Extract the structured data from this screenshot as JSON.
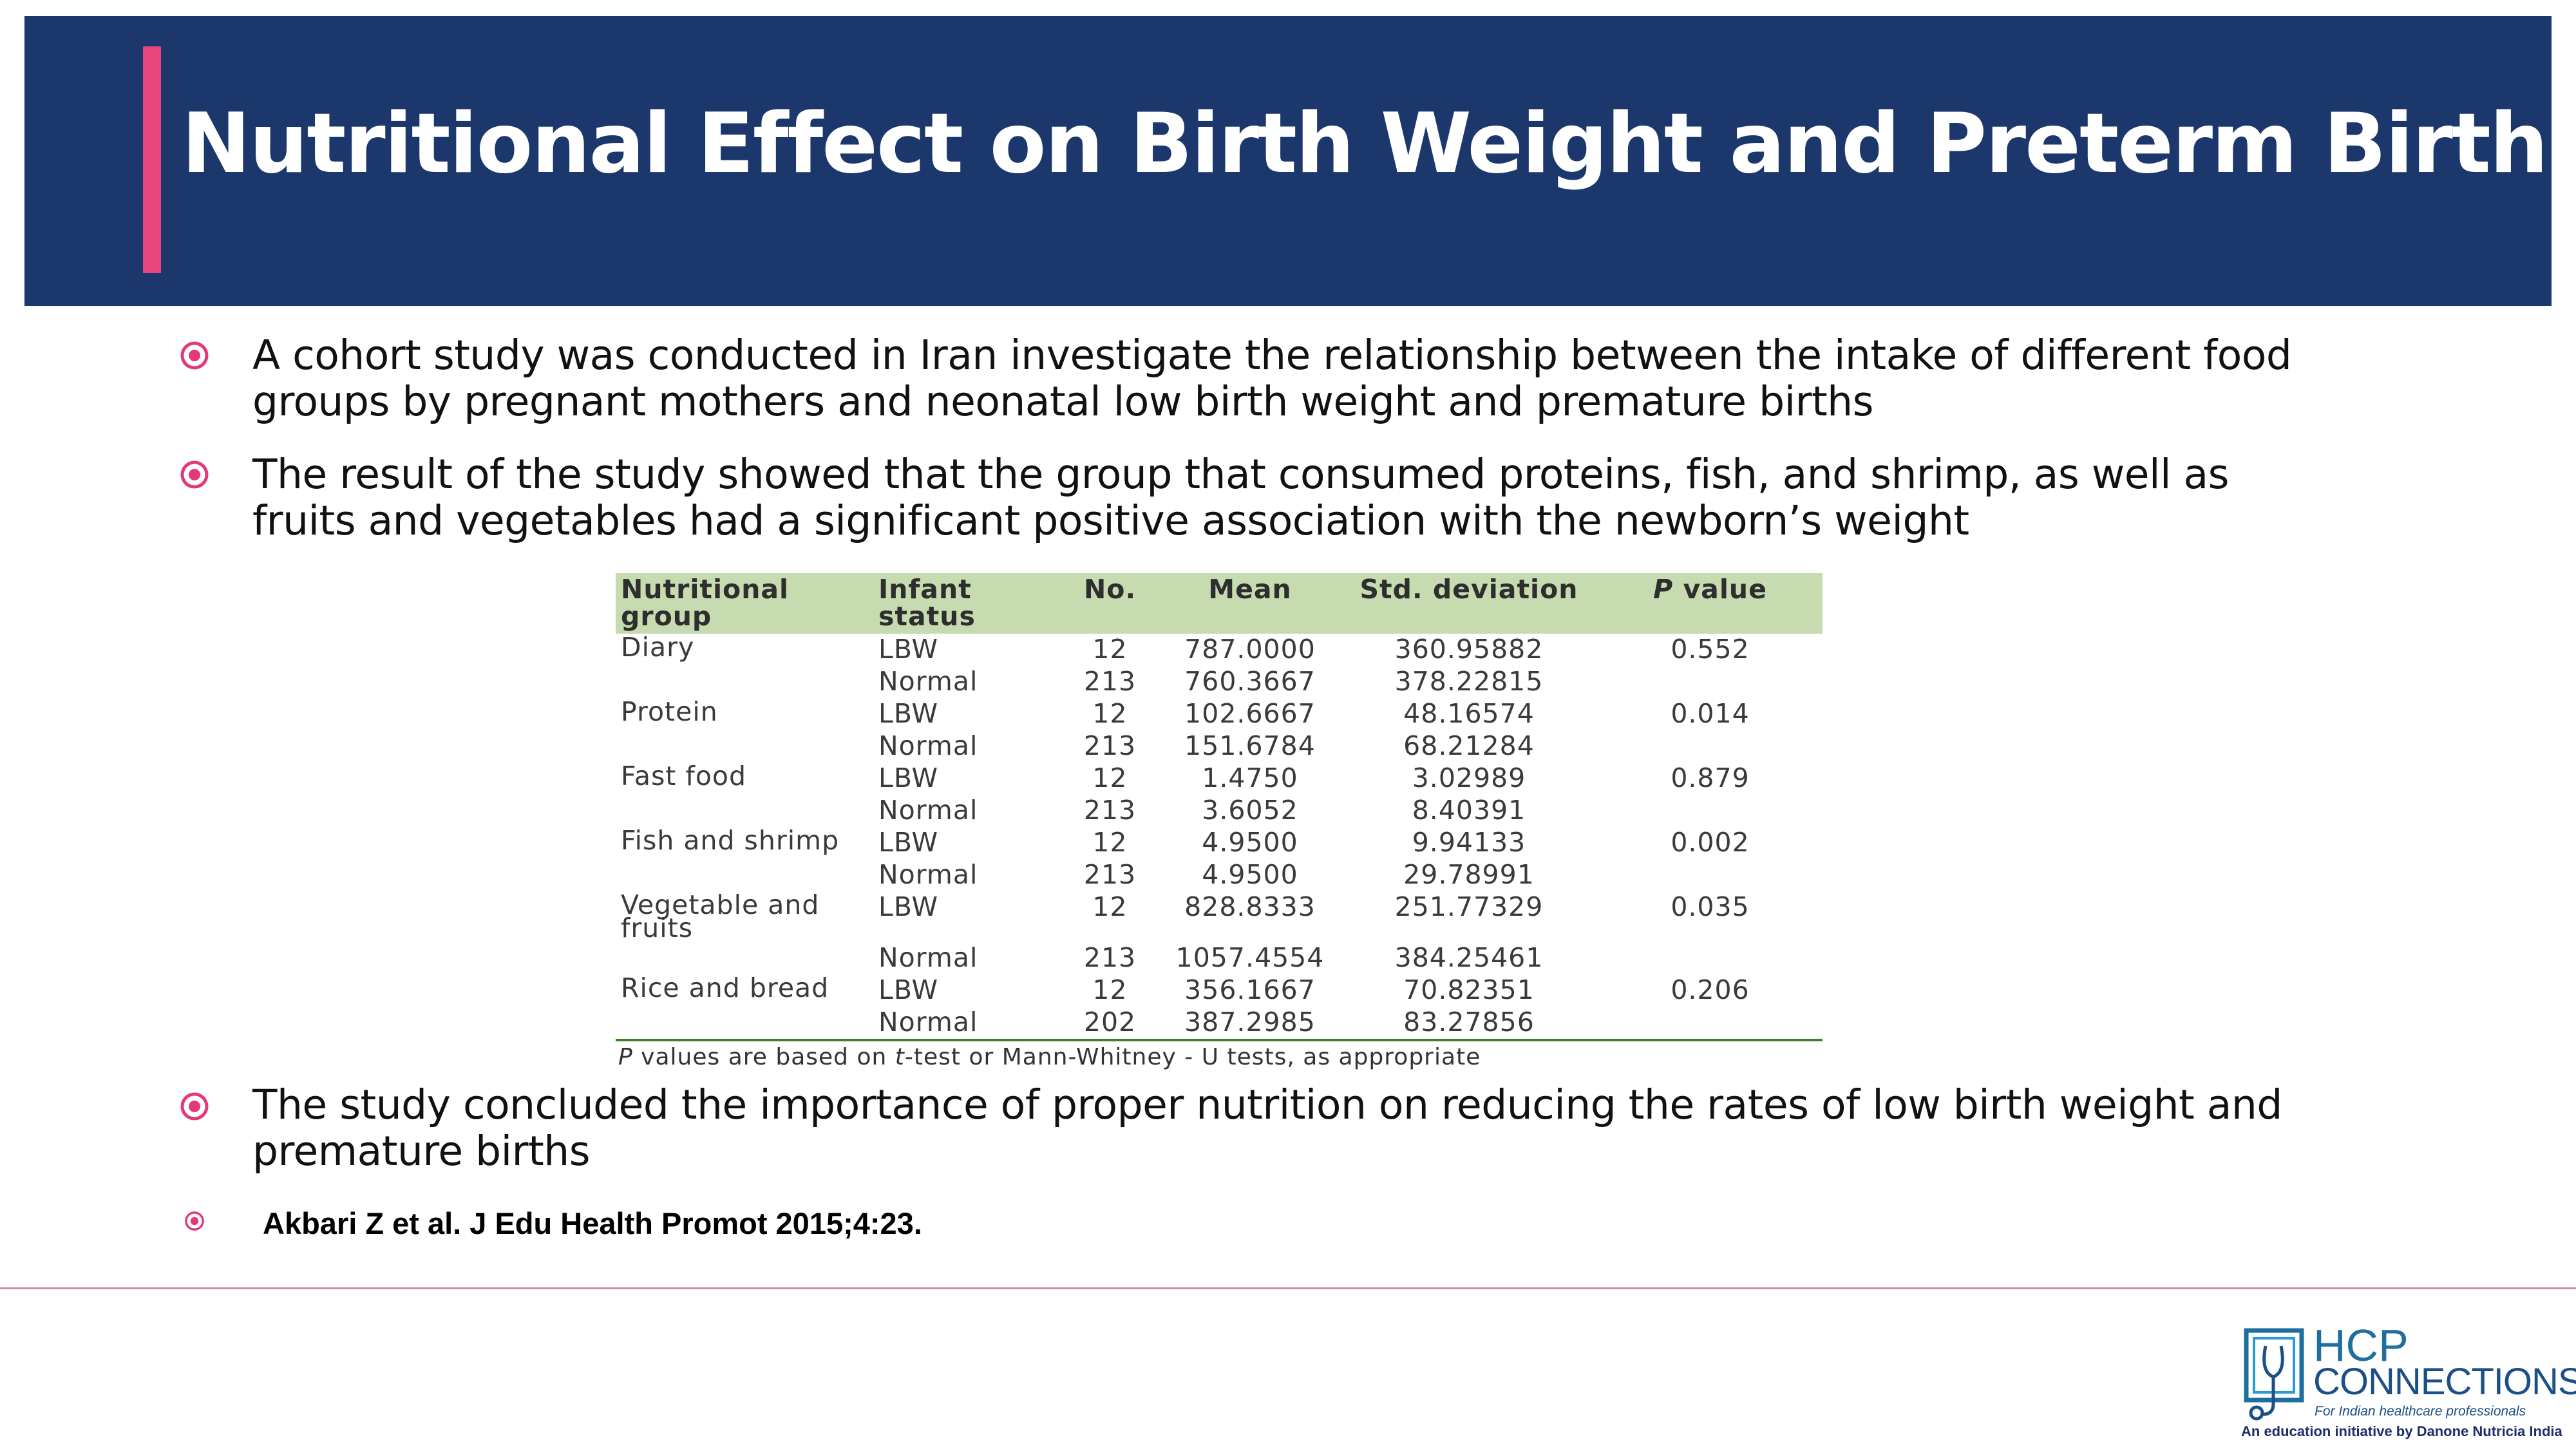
{
  "slide": {
    "title": "Nutritional Effect on Birth Weight and Preterm Birth",
    "accent_color": "#e8457c",
    "header_color": "#1b376c"
  },
  "bullets": [
    {
      "text": "A cohort study was conducted in Iran investigate the relationship between the intake of different food groups by pregnant mothers and neonatal low birth weight and premature births"
    },
    {
      "text": "The result of the study showed that the group that consumed proteins, fish, and shrimp, as well as fruits and vegetables had a significant positive association with the newborn’s weight"
    },
    {
      "text": "The study concluded the importance of proper nutrition on reducing the rates of low birth weight and premature births"
    }
  ],
  "reference": "Akbari Z et al. J Edu Health Promot 2015;4:23.",
  "table": {
    "headers": {
      "group": "Nutritional group",
      "status": "Infant status",
      "no": "No.",
      "mean": "Mean",
      "sd": "Std. deviation",
      "p_italic": "P",
      "p_rest": " value"
    },
    "rows": [
      {
        "group": "Diary",
        "status": "LBW",
        "no": "12",
        "mean": "787.0000",
        "sd": "360.95882",
        "p": "0.552"
      },
      {
        "group": "",
        "status": "Normal",
        "no": "213",
        "mean": "760.3667",
        "sd": "378.22815",
        "p": ""
      },
      {
        "group": "Protein",
        "status": "LBW",
        "no": "12",
        "mean": "102.6667",
        "sd": "48.16574",
        "p": "0.014"
      },
      {
        "group": "",
        "status": "Normal",
        "no": "213",
        "mean": "151.6784",
        "sd": "68.21284",
        "p": ""
      },
      {
        "group": "Fast food",
        "status": "LBW",
        "no": "12",
        "mean": "1.4750",
        "sd": "3.02989",
        "p": "0.879"
      },
      {
        "group": "",
        "status": "Normal",
        "no": "213",
        "mean": "3.6052",
        "sd": "8.40391",
        "p": ""
      },
      {
        "group": "Fish and shrimp",
        "status": "LBW",
        "no": "12",
        "mean": "4.9500",
        "sd": "9.94133",
        "p": "0.002"
      },
      {
        "group": "",
        "status": "Normal",
        "no": "213",
        "mean": "4.9500",
        "sd": "29.78991",
        "p": ""
      },
      {
        "group": "Vegetable and fruits",
        "status": "LBW",
        "no": "12",
        "mean": "828.8333",
        "sd": "251.77329",
        "p": "0.035"
      },
      {
        "group": "",
        "status": "Normal",
        "no": "213",
        "mean": "1057.4554",
        "sd": "384.25461",
        "p": ""
      },
      {
        "group": "Rice and bread",
        "status": "LBW",
        "no": "12",
        "mean": "356.1667",
        "sd": "70.82351",
        "p": "0.206"
      },
      {
        "group": "",
        "status": "Normal",
        "no": "202",
        "mean": "387.2985",
        "sd": "83.27856",
        "p": ""
      }
    ],
    "note_p": "P",
    "note_1": " values are based on ",
    "note_t": "t",
    "note_2": "-test or Mann-Whitney - U tests, as appropriate"
  },
  "logo": {
    "line1": "HCP",
    "line2": "CONNECTIONS",
    "tagline": "For Indian healthcare professionals",
    "initiative": "An education initiative by Danone Nutricia India"
  }
}
